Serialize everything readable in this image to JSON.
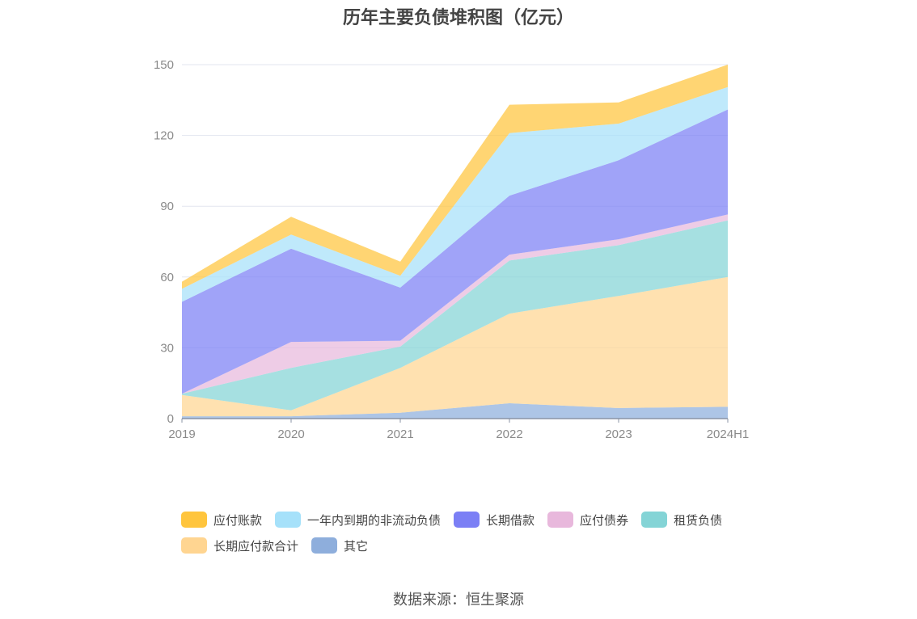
{
  "chart_data": {
    "type": "area",
    "stacked": true,
    "title": "历年主要负债堆积图（亿元）",
    "xlabel": "",
    "ylabel": "",
    "categories": [
      "2019",
      "2020",
      "2021",
      "2022",
      "2023",
      "2024H1"
    ],
    "ylim": [
      0,
      150
    ],
    "yticks": [
      "0",
      "30",
      "60",
      "90",
      "120",
      "150"
    ],
    "grid": true,
    "legend_position": "bottom",
    "series": [
      {
        "name": "其它",
        "color": "#8eaedc",
        "values": [
          1,
          1,
          2.5,
          6.5,
          4.5,
          5
        ]
      },
      {
        "name": "长期应付款合计",
        "color": "#ffd591",
        "values": [
          9,
          2.5,
          19,
          38,
          47.5,
          55
        ]
      },
      {
        "name": "租赁负债",
        "color": "#84d4d6",
        "values": [
          0.5,
          18,
          9,
          22.5,
          21.5,
          24
        ]
      },
      {
        "name": "应付债券",
        "color": "#e8b8dc",
        "values": [
          0,
          11,
          2.5,
          2.5,
          2.5,
          2.5
        ]
      },
      {
        "name": "长期借款",
        "color": "#7b7ff5",
        "values": [
          39,
          39.5,
          22.5,
          25,
          33.5,
          44.5
        ]
      },
      {
        "name": "一年内到期的非流动负债",
        "color": "#a6e1fa",
        "values": [
          5.5,
          6,
          5,
          26.5,
          15.5,
          9.5
        ]
      },
      {
        "name": "应付账款",
        "color": "#ffc53d",
        "values": [
          3,
          7.5,
          6,
          12,
          9,
          9.5
        ]
      }
    ],
    "legend_order": [
      "应付账款",
      "一年内到期的非流动负债",
      "长期借款",
      "应付债券",
      "租赁负债",
      "长期应付款合计",
      "其它"
    ]
  },
  "source_note": "数据来源：恒生聚源"
}
